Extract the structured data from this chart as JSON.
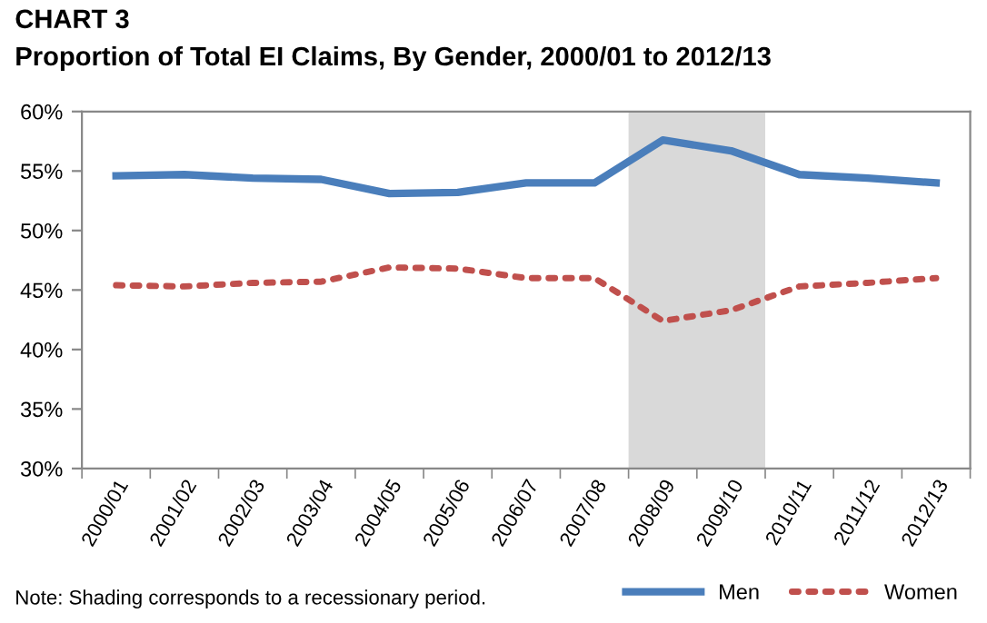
{
  "chart_data": {
    "type": "line",
    "title": "CHART 3",
    "subtitle": "Proportion of Total EI Claims, By Gender, 2000/01 to 2012/13",
    "categories": [
      "2000/01",
      "2001/02",
      "2002/03",
      "2003/04",
      "2004/05",
      "2005/06",
      "2006/07",
      "2007/08",
      "2008/09",
      "2009/10",
      "2010/11",
      "2011/12",
      "2012/13"
    ],
    "series": [
      {
        "name": "Men",
        "color": "#4a7ebb",
        "line_style": "solid",
        "values": [
          54.6,
          54.7,
          54.4,
          54.3,
          53.1,
          53.2,
          54.0,
          54.0,
          57.6,
          56.7,
          54.7,
          54.4,
          54.0
        ]
      },
      {
        "name": "Women",
        "color": "#c0504d",
        "line_style": "dotted",
        "values": [
          45.4,
          45.3,
          45.6,
          45.7,
          46.9,
          46.8,
          46.0,
          46.0,
          42.4,
          43.3,
          45.3,
          45.6,
          46.0
        ]
      }
    ],
    "ylim": [
      30,
      60
    ],
    "yticks": [
      {
        "value": 30,
        "label": "30%"
      },
      {
        "value": 35,
        "label": "35%"
      },
      {
        "value": 40,
        "label": "40%"
      },
      {
        "value": 45,
        "label": "45%"
      },
      {
        "value": 50,
        "label": "50%"
      },
      {
        "value": 55,
        "label": "55%"
      },
      {
        "value": 60,
        "label": "60%"
      }
    ],
    "bands": [
      {
        "axis": "x",
        "from": "2008/09",
        "to": "2009/10",
        "color": "#d9d9d9"
      }
    ],
    "annotations": [
      "Note: Shading corresponds to a recessionary period."
    ],
    "legend": "bottom right",
    "grid": false
  }
}
